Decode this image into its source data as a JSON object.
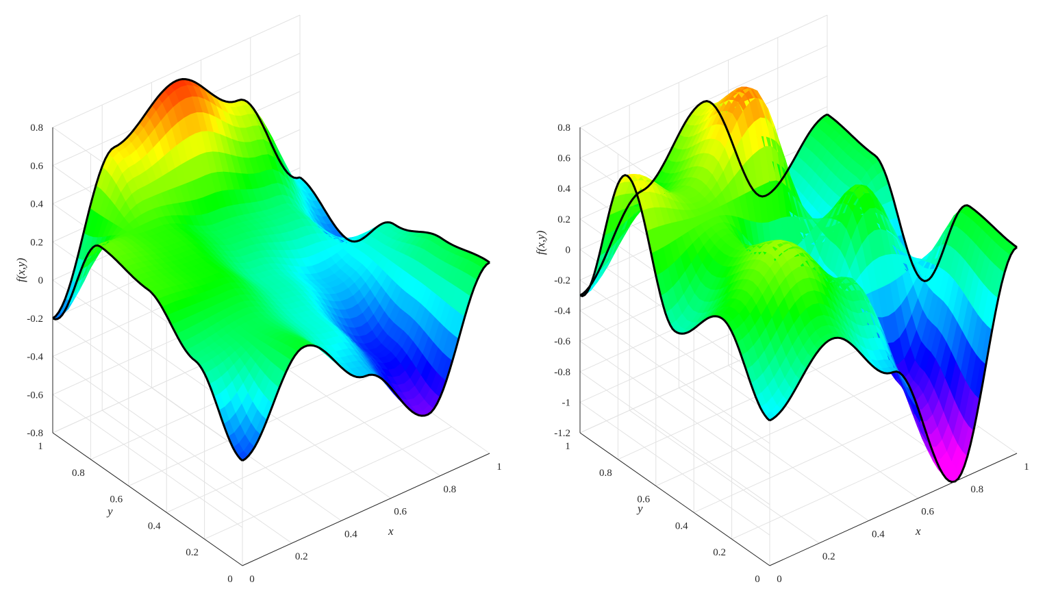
{
  "chart_data": [
    {
      "type": "surface",
      "title": "",
      "xlabel": "x",
      "ylabel": "y",
      "zlabel": "f(x,y)",
      "xlim": [
        0,
        1
      ],
      "ylim": [
        0,
        1
      ],
      "zlim": [
        -0.8,
        0.8
      ],
      "xticks": [
        "0",
        "0.2",
        "0.4",
        "0.6",
        "0.8",
        "1"
      ],
      "yticks": [
        "0",
        "0.2",
        "0.4",
        "0.6",
        "0.8",
        "1"
      ],
      "zticks": [
        "-0.8",
        "-0.6",
        "-0.4",
        "-0.2",
        "0",
        "0.2",
        "0.4",
        "0.6",
        "0.8"
      ],
      "grid": true,
      "colormap": "hsv",
      "color_range": [
        -0.6,
        0.8
      ],
      "edge_outline": "black",
      "surface_samples": {
        "x": [
          0,
          0.25,
          0.5,
          0.75,
          1
        ],
        "y": [
          0,
          0.25,
          0.5,
          0.75,
          1
        ],
        "z": [
          [
            -0.25,
            0.2,
            -0.1,
            -0.45,
            0.2
          ],
          [
            0.1,
            0.15,
            0.0,
            -0.3,
            0.15
          ],
          [
            0.3,
            0.25,
            0.05,
            -0.1,
            0.05
          ],
          [
            0.35,
            0.28,
            0.15,
            0.1,
            -0.2
          ],
          [
            -0.2,
            0.55,
            0.75,
            0.5,
            -0.05
          ]
        ]
      }
    },
    {
      "type": "surface",
      "title": "",
      "xlabel": "x",
      "ylabel": "y",
      "zlabel": "f(x,y)",
      "xlim": [
        0,
        1
      ],
      "ylim": [
        0,
        1
      ],
      "zlim": [
        -1.2,
        0.8
      ],
      "xticks": [
        "0",
        "0.2",
        "0.4",
        "0.6",
        "0.8",
        "1"
      ],
      "yticks": [
        "0",
        "0.2",
        "0.4",
        "0.6",
        "0.8",
        "1"
      ],
      "zticks": [
        "-1.2",
        "-1",
        "-0.8",
        "-0.6",
        "-0.4",
        "-0.2",
        "0",
        "0.2",
        "0.4",
        "0.6",
        "0.8"
      ],
      "grid": true,
      "colormap": "hsv",
      "color_range": [
        -1.1,
        1.1
      ],
      "edge_outline": "black",
      "surface_samples": {
        "x": [
          0,
          0.25,
          0.5,
          0.75,
          1
        ],
        "y": [
          0,
          0.25,
          0.5,
          0.75,
          1
        ],
        "z": [
          [
            -0.25,
            0.1,
            -0.3,
            -1.2,
            0.15
          ],
          [
            0.2,
            0.5,
            0.1,
            -0.8,
            0.2
          ],
          [
            -0.1,
            0.3,
            -0.6,
            0.3,
            -0.5
          ],
          [
            0.7,
            0.4,
            0.9,
            -0.3,
            0.1
          ],
          [
            -0.3,
            0.2,
            0.6,
            -0.2,
            0.15
          ]
        ]
      }
    }
  ]
}
